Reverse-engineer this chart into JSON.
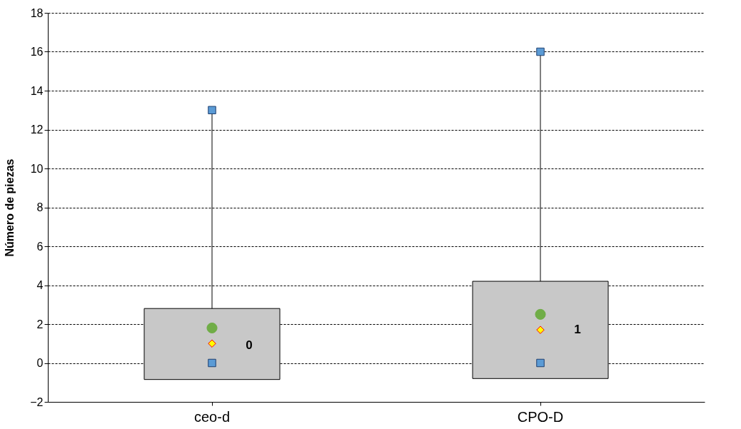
{
  "chart_data": {
    "type": "box",
    "ylabel": "Número de piezas",
    "categories": [
      "ceo-d",
      "CPO-D"
    ],
    "boxes": [
      {
        "low": -0.85,
        "q1": -0.85,
        "median": 1.0,
        "q3": 2.8,
        "high": 13,
        "mean": 1.8
      },
      {
        "low": -0.8,
        "q1": -0.8,
        "median": 1.7,
        "q3": 4.2,
        "high": 16,
        "mean": 2.5
      }
    ],
    "series": [
      {
        "type": "scatter",
        "marker": "square",
        "color": "#5b9bd5",
        "x": [
          "ceo-d",
          "CPO-D"
        ],
        "values": [
          13,
          16
        ]
      },
      {
        "type": "scatter",
        "marker": "square",
        "color": "#5b9bd5",
        "x": [
          "ceo-d",
          "CPO-D"
        ],
        "values": [
          0,
          0
        ]
      }
    ],
    "ylim": [
      -2,
      18
    ],
    "yticks": [
      -2,
      0,
      2,
      4,
      6,
      8,
      10,
      12,
      14,
      16,
      18
    ],
    "grid": "y",
    "annotations": [
      {
        "text": "0",
        "x": "ceo-d",
        "y": 0.9
      },
      {
        "text": "1",
        "x": "CPO-D",
        "y": 1.7
      }
    ]
  }
}
